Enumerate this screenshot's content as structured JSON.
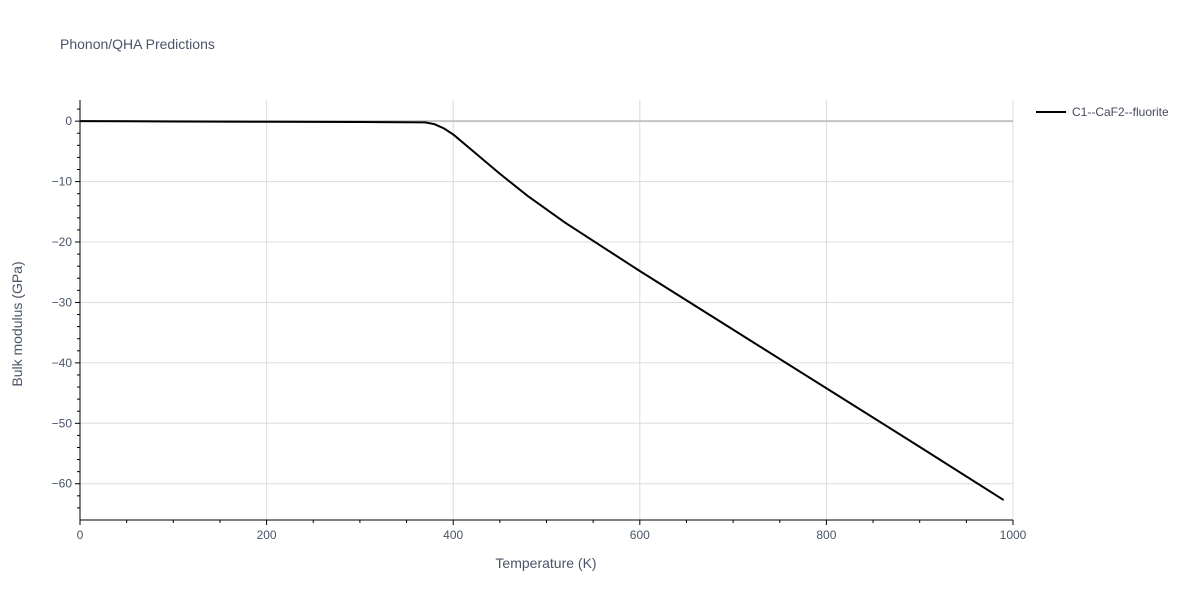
{
  "chart_data": {
    "type": "line",
    "title": "Phonon/QHA Predictions",
    "xlabel": "Temperature (K)",
    "ylabel": "Bulk modulus (GPa)",
    "xlim": [
      0,
      1000
    ],
    "ylim": [
      -66,
      3.5
    ],
    "x_ticks": [
      0,
      200,
      400,
      600,
      800,
      1000
    ],
    "y_ticks": [
      0,
      -10,
      -20,
      -30,
      -40,
      -50,
      -60
    ],
    "x_tick_labels": [
      "0",
      "200",
      "400",
      "600",
      "800",
      "1000"
    ],
    "y_tick_labels": [
      "0",
      "−10",
      "−20",
      "−30",
      "−40",
      "−50",
      "−60"
    ],
    "grid": true,
    "legend_position": "top-right, outside plot",
    "series": [
      {
        "name": "C1--CaF2--fluorite",
        "color": "#000000",
        "x": [
          0,
          100,
          200,
          300,
          370,
          380,
          390,
          400,
          420,
          450,
          480,
          520,
          600,
          700,
          800,
          900,
          990
        ],
        "y": [
          0,
          -0.05,
          -0.1,
          -0.15,
          -0.2,
          -0.5,
          -1.2,
          -2.2,
          -4.8,
          -8.7,
          -12.4,
          -16.8,
          -24.8,
          -34.5,
          -44.2,
          -53.9,
          -62.7
        ]
      }
    ]
  }
}
